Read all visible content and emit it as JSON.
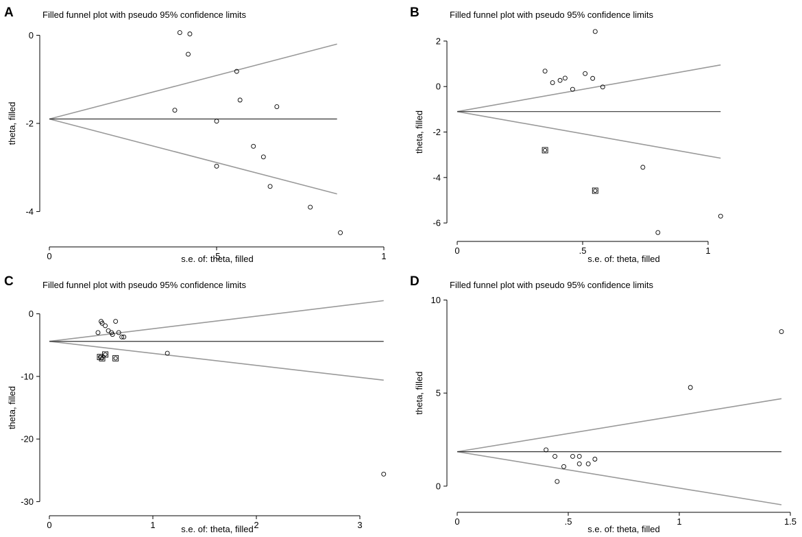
{
  "chart_data": [
    {
      "panel": "A",
      "type": "scatter",
      "subtype": "filled funnel plot",
      "title": "Filled funnel plot with pseudo 95% confidence limits",
      "xlabel": "s.e. of: theta, filled",
      "ylabel": "theta, filled",
      "xticks": [
        "0",
        ".5",
        "1"
      ],
      "xtick_values": [
        0,
        0.5,
        1
      ],
      "yticks": [
        "0",
        "-2",
        "-4"
      ],
      "ytick_values": [
        0,
        -2,
        -4
      ],
      "xlim": [
        0,
        1
      ],
      "ylim": [
        -4.6,
        0.1
      ],
      "pooled_estimate": -1.9,
      "max_se": 0.86,
      "funnel_limits": {
        "upper_at_max_se": -0.2,
        "lower_at_max_se": -3.6
      },
      "observed": [
        {
          "se": 0.39,
          "theta": 0.06
        },
        {
          "se": 0.42,
          "theta": 0.03
        },
        {
          "se": 0.415,
          "theta": -0.43
        },
        {
          "se": 0.375,
          "theta": -1.7
        },
        {
          "se": 0.56,
          "theta": -0.82
        },
        {
          "se": 0.57,
          "theta": -1.47
        },
        {
          "se": 0.68,
          "theta": -1.62
        },
        {
          "se": 0.5,
          "theta": -1.95
        },
        {
          "se": 0.61,
          "theta": -2.52
        },
        {
          "se": 0.5,
          "theta": -2.97
        },
        {
          "se": 0.64,
          "theta": -2.76
        },
        {
          "se": 0.66,
          "theta": -3.43
        },
        {
          "se": 0.78,
          "theta": -3.9
        },
        {
          "se": 0.87,
          "theta": -4.48
        }
      ],
      "filled": []
    },
    {
      "panel": "B",
      "type": "scatter",
      "subtype": "filled funnel plot",
      "title": "Filled funnel plot with pseudo 95% confidence limits",
      "xlabel": "s.e. of: theta, filled",
      "ylabel": "theta, filled",
      "xticks": [
        "0",
        ".5",
        "1"
      ],
      "xtick_values": [
        0,
        0.5,
        1
      ],
      "yticks": [
        "2",
        "0",
        "-2",
        "-4",
        "-6"
      ],
      "ytick_values": [
        2,
        0,
        -2,
        -4,
        -6
      ],
      "xlim": [
        0,
        1.05
      ],
      "ylim": [
        -6.6,
        2.6
      ],
      "pooled_estimate": -1.1,
      "max_se": 1.05,
      "funnel_limits": {
        "upper_at_max_se": 0.95,
        "lower_at_max_se": -3.15
      },
      "observed": [
        {
          "se": 0.55,
          "theta": 2.42
        },
        {
          "se": 0.35,
          "theta": 0.68
        },
        {
          "se": 0.51,
          "theta": 0.57
        },
        {
          "se": 0.38,
          "theta": 0.17
        },
        {
          "se": 0.41,
          "theta": 0.27
        },
        {
          "se": 0.43,
          "theta": 0.37
        },
        {
          "se": 0.54,
          "theta": 0.36
        },
        {
          "se": 0.46,
          "theta": -0.12
        },
        {
          "se": 0.58,
          "theta": -0.02
        },
        {
          "se": 0.74,
          "theta": -3.55
        },
        {
          "se": 0.8,
          "theta": -6.42
        },
        {
          "se": 1.05,
          "theta": -5.7
        }
      ],
      "filled": [
        {
          "se": 0.35,
          "theta": -2.8
        },
        {
          "se": 0.55,
          "theta": -4.58
        }
      ]
    },
    {
      "panel": "C",
      "type": "scatter",
      "subtype": "filled funnel plot",
      "title": "Filled funnel plot with pseudo 95% confidence limits",
      "xlabel": "s.e. of: theta, filled",
      "ylabel": "theta, filled",
      "xticks": [
        "0",
        "1",
        "2",
        "3"
      ],
      "xtick_values": [
        0,
        1,
        2,
        3
      ],
      "yticks": [
        "0",
        "-10",
        "-20",
        "-30"
      ],
      "ytick_values": [
        0,
        -10,
        -20,
        -30
      ],
      "xlim": [
        0,
        3.25
      ],
      "ylim": [
        -30.5,
        2.8
      ],
      "pooled_estimate": -4.4,
      "max_se": 3.23,
      "funnel_limits": {
        "upper_at_max_se": 2.1,
        "lower_at_max_se": -10.6
      },
      "observed": [
        {
          "se": 0.5,
          "theta": -1.2
        },
        {
          "se": 0.51,
          "theta": -1.5
        },
        {
          "se": 0.54,
          "theta": -1.9
        },
        {
          "se": 0.64,
          "theta": -1.2
        },
        {
          "se": 0.57,
          "theta": -2.7
        },
        {
          "se": 0.47,
          "theta": -3.0
        },
        {
          "se": 0.6,
          "theta": -3.0
        },
        {
          "se": 0.61,
          "theta": -3.3
        },
        {
          "se": 0.67,
          "theta": -3.0
        },
        {
          "se": 0.7,
          "theta": -3.7
        },
        {
          "se": 0.72,
          "theta": -3.7
        },
        {
          "se": 1.14,
          "theta": -6.3
        },
        {
          "se": 3.23,
          "theta": -25.6
        }
      ],
      "filled": [
        {
          "se": 0.49,
          "theta": -6.9
        },
        {
          "se": 0.51,
          "theta": -7.1
        },
        {
          "se": 0.54,
          "theta": -6.5
        },
        {
          "se": 0.64,
          "theta": -7.1
        }
      ]
    },
    {
      "panel": "D",
      "type": "scatter",
      "subtype": "filled funnel plot",
      "title": "Filled funnel plot with pseudo 95% confidence limits",
      "xlabel": "s.e. of: theta, filled",
      "ylabel": "theta, filled",
      "xticks": [
        "0",
        ".5",
        "1",
        "1.5"
      ],
      "xtick_values": [
        0,
        0.5,
        1,
        1.5
      ],
      "yticks": [
        "10",
        "5",
        "0"
      ],
      "ytick_values": [
        10,
        5,
        0
      ],
      "xlim": [
        0,
        1.5
      ],
      "ylim": [
        -1.0,
        10.2
      ],
      "pooled_estimate": 1.85,
      "max_se": 1.46,
      "funnel_limits": {
        "upper_at_max_se": 4.7,
        "lower_at_max_se": -1.0
      },
      "observed": [
        {
          "se": 0.4,
          "theta": 1.95
        },
        {
          "se": 0.44,
          "theta": 1.6
        },
        {
          "se": 0.52,
          "theta": 1.6
        },
        {
          "se": 0.55,
          "theta": 1.6
        },
        {
          "se": 0.62,
          "theta": 1.45
        },
        {
          "se": 0.48,
          "theta": 1.05
        },
        {
          "se": 0.55,
          "theta": 1.2
        },
        {
          "se": 0.59,
          "theta": 1.2
        },
        {
          "se": 0.45,
          "theta": 0.25
        },
        {
          "se": 1.05,
          "theta": 5.3
        },
        {
          "se": 1.46,
          "theta": 8.3
        }
      ],
      "filled": []
    }
  ],
  "colors": {
    "funnel_line": "#999999",
    "pooled_line": "#333333",
    "axis": "#000000",
    "marker": "#000000"
  }
}
